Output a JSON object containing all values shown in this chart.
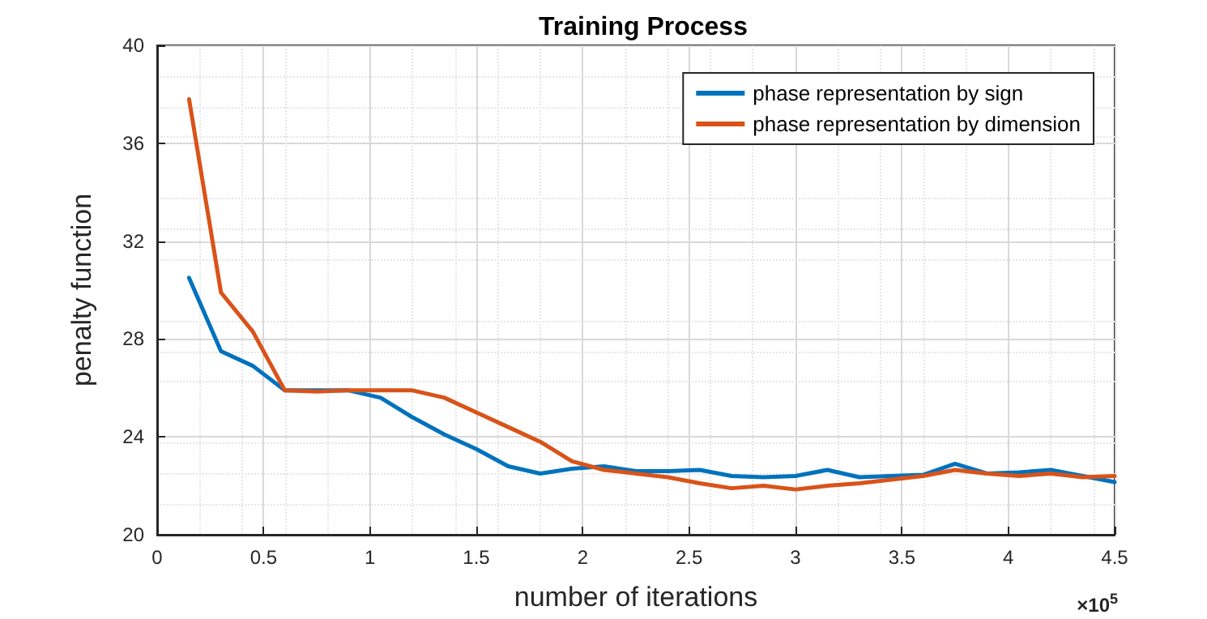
{
  "chart_data": {
    "type": "line",
    "title": "Training Process",
    "xlabel": "number of iterations",
    "ylabel": "penalty function",
    "annotations": [
      "×10$^{5}$"
    ],
    "x": [
      0.15,
      0.3,
      0.45,
      0.6,
      0.75,
      0.9,
      1.05,
      1.2,
      1.35,
      1.5,
      1.65,
      1.8,
      1.95,
      2.1,
      2.25,
      2.4,
      2.55,
      2.7,
      2.85,
      3.0,
      3.15,
      3.3,
      3.45,
      3.6,
      3.75,
      3.9,
      4.05,
      4.2,
      4.35,
      4.5
    ],
    "series": [
      {
        "name": "phase representation by sign",
        "color": "#0072bd",
        "values": [
          30.5,
          27.5,
          26.9,
          25.9,
          25.9,
          25.9,
          25.6,
          24.8,
          24.1,
          23.5,
          22.8,
          22.5,
          22.7,
          22.8,
          22.6,
          22.6,
          22.65,
          22.4,
          22.35,
          22.4,
          22.65,
          22.35,
          22.4,
          22.45,
          22.9,
          22.5,
          22.55,
          22.65,
          22.4,
          22.15
        ]
      },
      {
        "name": "phase representation by dimension",
        "color": "#d95319",
        "values": [
          37.8,
          29.9,
          28.3,
          25.9,
          25.85,
          25.9,
          25.9,
          25.9,
          25.6,
          25.0,
          24.4,
          23.8,
          23.0,
          22.65,
          22.5,
          22.35,
          22.1,
          21.9,
          22.0,
          21.85,
          22.0,
          22.1,
          22.25,
          22.4,
          22.65,
          22.5,
          22.4,
          22.5,
          22.35,
          22.4
        ]
      }
    ],
    "xlim": [
      0,
      4.5
    ],
    "xticks": [
      0,
      0.5,
      1,
      1.5,
      2,
      2.5,
      3,
      3.5,
      4,
      4.5
    ],
    "ylim": [
      20,
      40
    ],
    "yticks": [
      20,
      24,
      28,
      32,
      36,
      40
    ],
    "grid": true,
    "legend": "top right",
    "marker": "none",
    "line_style": "solid"
  }
}
